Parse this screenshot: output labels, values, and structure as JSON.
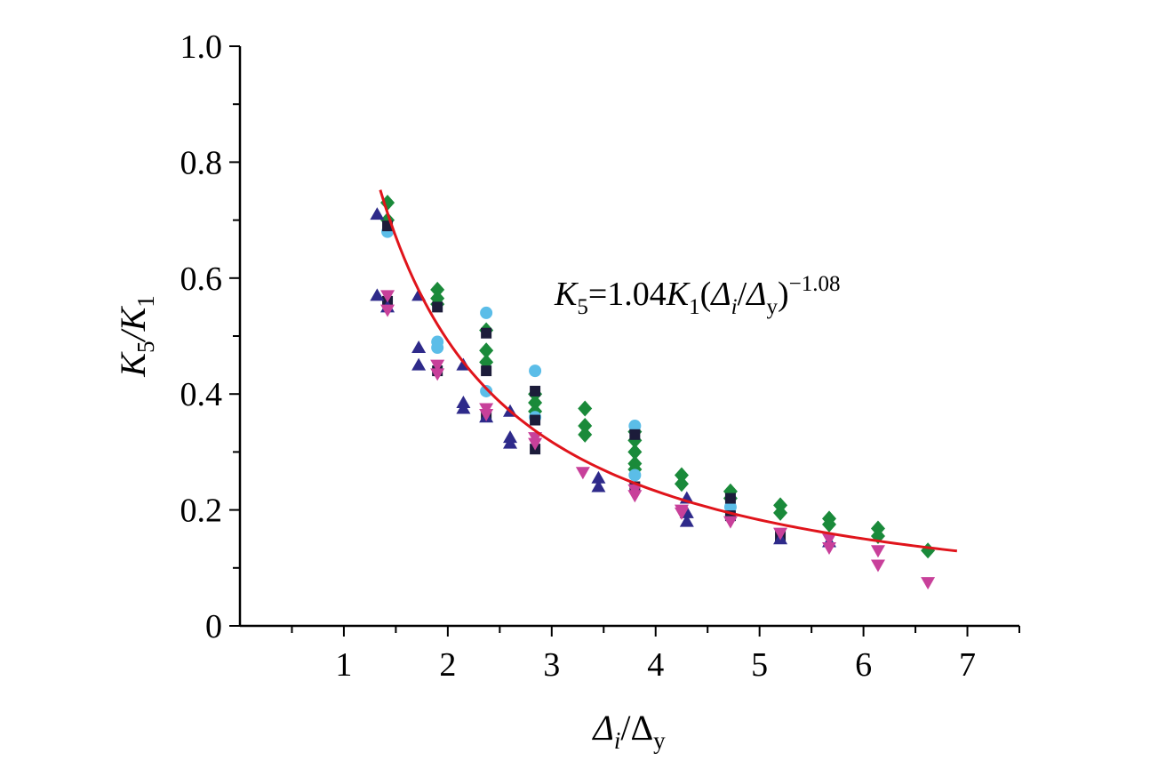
{
  "chart_data": {
    "type": "scatter",
    "title": "",
    "xlabel": {
      "main": "Δ",
      "sub1": "i",
      "sep": "/Δ",
      "sub2": "y"
    },
    "ylabel": {
      "main": "K",
      "sub1": "5",
      "sep": "/K",
      "sub2": "1"
    },
    "xlim": [
      0,
      7.5
    ],
    "ylim": [
      0,
      1.0
    ],
    "x_ticks": [
      1,
      2,
      3,
      4,
      5,
      6,
      7
    ],
    "x_tick_labels": [
      "1",
      "2",
      "3",
      "4",
      "5",
      "6",
      "7"
    ],
    "y_ticks": [
      0,
      0.2,
      0.4,
      0.6,
      0.8,
      1.0
    ],
    "y_tick_labels": [
      "0",
      "0.2",
      "0.4",
      "0.6",
      "0.8",
      "1.0"
    ],
    "grid": false,
    "legend": "none",
    "equation": {
      "k5": "K",
      "k5sub": "5",
      "coef": "=1.04",
      "k1": "K",
      "k1sub": "1",
      "open": "(",
      "di": "Δ",
      "disub": "i",
      "slash": "/",
      "dy": "Δ",
      "dysub": "y",
      "close": ")",
      "exp": "−1.08"
    },
    "fit_curve": {
      "a": 1.04,
      "b": -1.08,
      "x_range": [
        1.35,
        6.9
      ],
      "color": "#e0141b"
    },
    "series": [
      {
        "marker": "diamond",
        "color": "#1a8a3a",
        "points": [
          [
            1.42,
            0.73
          ],
          [
            1.42,
            0.7
          ],
          [
            1.9,
            0.58
          ],
          [
            1.9,
            0.565
          ],
          [
            1.9,
            0.555
          ],
          [
            2.37,
            0.51
          ],
          [
            2.37,
            0.475
          ],
          [
            2.37,
            0.455
          ],
          [
            2.84,
            0.4
          ],
          [
            2.84,
            0.385
          ],
          [
            2.84,
            0.37
          ],
          [
            3.32,
            0.375
          ],
          [
            3.32,
            0.345
          ],
          [
            3.32,
            0.33
          ],
          [
            3.8,
            0.335
          ],
          [
            3.8,
            0.32
          ],
          [
            3.8,
            0.3
          ],
          [
            3.8,
            0.28
          ],
          [
            3.8,
            0.27
          ],
          [
            4.25,
            0.26
          ],
          [
            4.25,
            0.245
          ],
          [
            4.72,
            0.232
          ],
          [
            4.72,
            0.22
          ],
          [
            5.2,
            0.208
          ],
          [
            5.2,
            0.195
          ],
          [
            5.67,
            0.185
          ],
          [
            5.67,
            0.175
          ],
          [
            6.14,
            0.168
          ],
          [
            6.14,
            0.155
          ],
          [
            6.62,
            0.13
          ]
        ]
      },
      {
        "marker": "circle",
        "color": "#5bbde8",
        "points": [
          [
            1.42,
            0.68
          ],
          [
            1.9,
            0.49
          ],
          [
            1.9,
            0.48
          ],
          [
            2.37,
            0.54
          ],
          [
            2.37,
            0.405
          ],
          [
            2.84,
            0.44
          ],
          [
            2.84,
            0.36
          ],
          [
            3.8,
            0.345
          ],
          [
            3.8,
            0.26
          ],
          [
            4.72,
            0.205
          ]
        ]
      },
      {
        "marker": "square",
        "color": "#1c1c3a",
        "points": [
          [
            1.42,
            0.69
          ],
          [
            1.42,
            0.56
          ],
          [
            1.9,
            0.55
          ],
          [
            1.9,
            0.44
          ],
          [
            2.37,
            0.505
          ],
          [
            2.37,
            0.44
          ],
          [
            2.37,
            0.365
          ],
          [
            2.84,
            0.405
          ],
          [
            2.84,
            0.355
          ],
          [
            2.84,
            0.305
          ],
          [
            3.8,
            0.33
          ],
          [
            3.8,
            0.24
          ],
          [
            4.72,
            0.22
          ],
          [
            4.72,
            0.19
          ],
          [
            5.2,
            0.155
          ]
        ]
      },
      {
        "marker": "triangle-up",
        "color": "#2e2a8a",
        "points": [
          [
            1.32,
            0.71
          ],
          [
            1.32,
            0.57
          ],
          [
            1.42,
            0.55
          ],
          [
            1.72,
            0.57
          ],
          [
            1.72,
            0.48
          ],
          [
            1.72,
            0.45
          ],
          [
            2.15,
            0.45
          ],
          [
            2.15,
            0.385
          ],
          [
            2.15,
            0.375
          ],
          [
            2.37,
            0.36
          ],
          [
            2.6,
            0.37
          ],
          [
            2.6,
            0.325
          ],
          [
            2.6,
            0.315
          ],
          [
            3.45,
            0.255
          ],
          [
            3.45,
            0.24
          ],
          [
            4.3,
            0.22
          ],
          [
            4.3,
            0.195
          ],
          [
            4.3,
            0.18
          ],
          [
            5.2,
            0.15
          ],
          [
            5.67,
            0.145
          ]
        ]
      },
      {
        "marker": "triangle-down",
        "color": "#c8409a",
        "points": [
          [
            1.42,
            0.57
          ],
          [
            1.42,
            0.545
          ],
          [
            1.9,
            0.45
          ],
          [
            1.9,
            0.435
          ],
          [
            2.37,
            0.375
          ],
          [
            2.37,
            0.365
          ],
          [
            2.84,
            0.325
          ],
          [
            2.84,
            0.315
          ],
          [
            3.3,
            0.265
          ],
          [
            3.8,
            0.235
          ],
          [
            3.8,
            0.225
          ],
          [
            4.25,
            0.2
          ],
          [
            4.25,
            0.195
          ],
          [
            4.72,
            0.18
          ],
          [
            5.2,
            0.16
          ],
          [
            5.67,
            0.15
          ],
          [
            5.67,
            0.135
          ],
          [
            6.14,
            0.13
          ],
          [
            6.14,
            0.105
          ],
          [
            6.62,
            0.075
          ]
        ]
      }
    ]
  }
}
